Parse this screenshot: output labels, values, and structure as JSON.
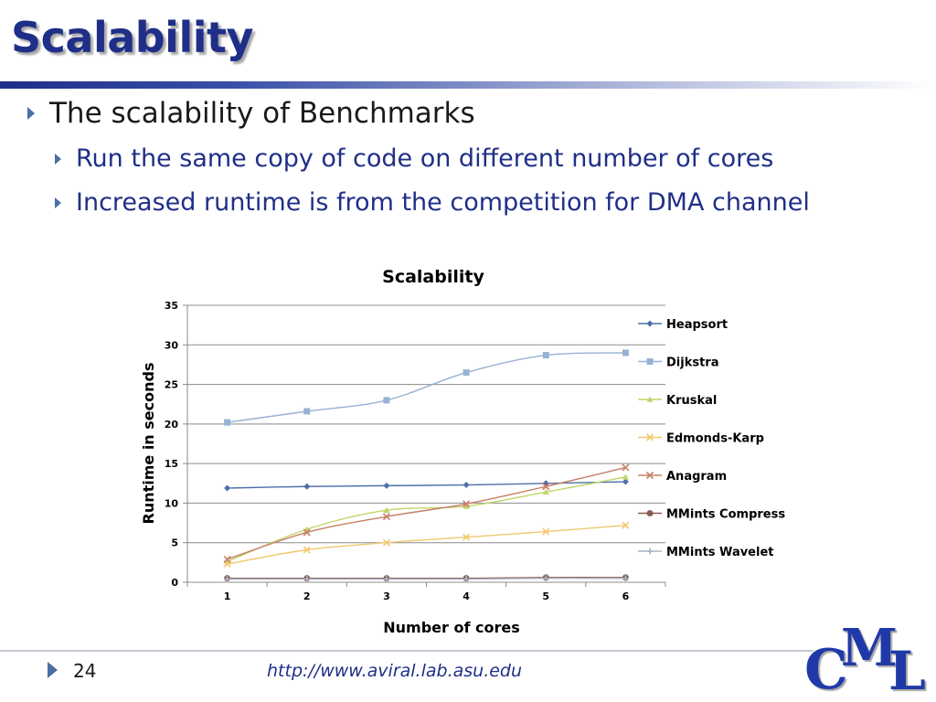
{
  "slide": {
    "title": "Scalability",
    "bullets": [
      "The scalability of Benchmarks",
      "Run the same copy of code on different number of cores",
      "Increased runtime is from the competition for DMA channel"
    ],
    "page_number": "24",
    "footer_url": "http://www.aviral.lab.asu.edu",
    "logo_letters": [
      "C",
      "M",
      "L"
    ]
  },
  "colors": {
    "title": "#1f2f88",
    "sub_bullet": "#1f2f88",
    "bullet_marker": "#4a6fa5",
    "logo": "#1f3aa8"
  },
  "chart_data": {
    "type": "line",
    "title": "Scalability",
    "xlabel": "Number of cores",
    "ylabel": "Runtime in seconds",
    "categories": [
      "1",
      "2",
      "3",
      "4",
      "5",
      "6"
    ],
    "ylim": [
      0,
      35
    ],
    "yticks": [
      0,
      5,
      10,
      15,
      20,
      25,
      30,
      35
    ],
    "grid": "horizontal",
    "legend_position": "right",
    "series": [
      {
        "name": "Heapsort",
        "values": [
          11.9,
          12.1,
          12.2,
          12.3,
          12.5,
          12.7
        ],
        "color": "#4f6fa8",
        "marker": "diamond"
      },
      {
        "name": "Dijkstra",
        "values": [
          20.2,
          21.6,
          23.0,
          26.5,
          28.7,
          29.0
        ],
        "color": "#98b1d4",
        "marker": "square"
      },
      {
        "name": "Kruskal",
        "values": [
          2.6,
          6.7,
          9.1,
          9.6,
          11.4,
          13.3
        ],
        "color": "#c2d56a",
        "marker": "triangle"
      },
      {
        "name": "Edmonds-Karp",
        "values": [
          2.3,
          4.1,
          5.0,
          5.7,
          6.4,
          7.2
        ],
        "color": "#f0c96d",
        "marker": "x"
      },
      {
        "name": "Anagram",
        "values": [
          2.9,
          6.3,
          8.3,
          9.9,
          12.1,
          14.5
        ],
        "color": "#c78068",
        "marker": "x"
      },
      {
        "name": "MMints Compress",
        "values": [
          0.5,
          0.5,
          0.5,
          0.5,
          0.6,
          0.6
        ],
        "color": "#8a5e55",
        "marker": "circle"
      },
      {
        "name": "MMints Wavelet",
        "values": [
          0.4,
          0.4,
          0.4,
          0.4,
          0.5,
          0.5
        ],
        "color": "#aab3c5",
        "marker": "plus"
      }
    ]
  }
}
